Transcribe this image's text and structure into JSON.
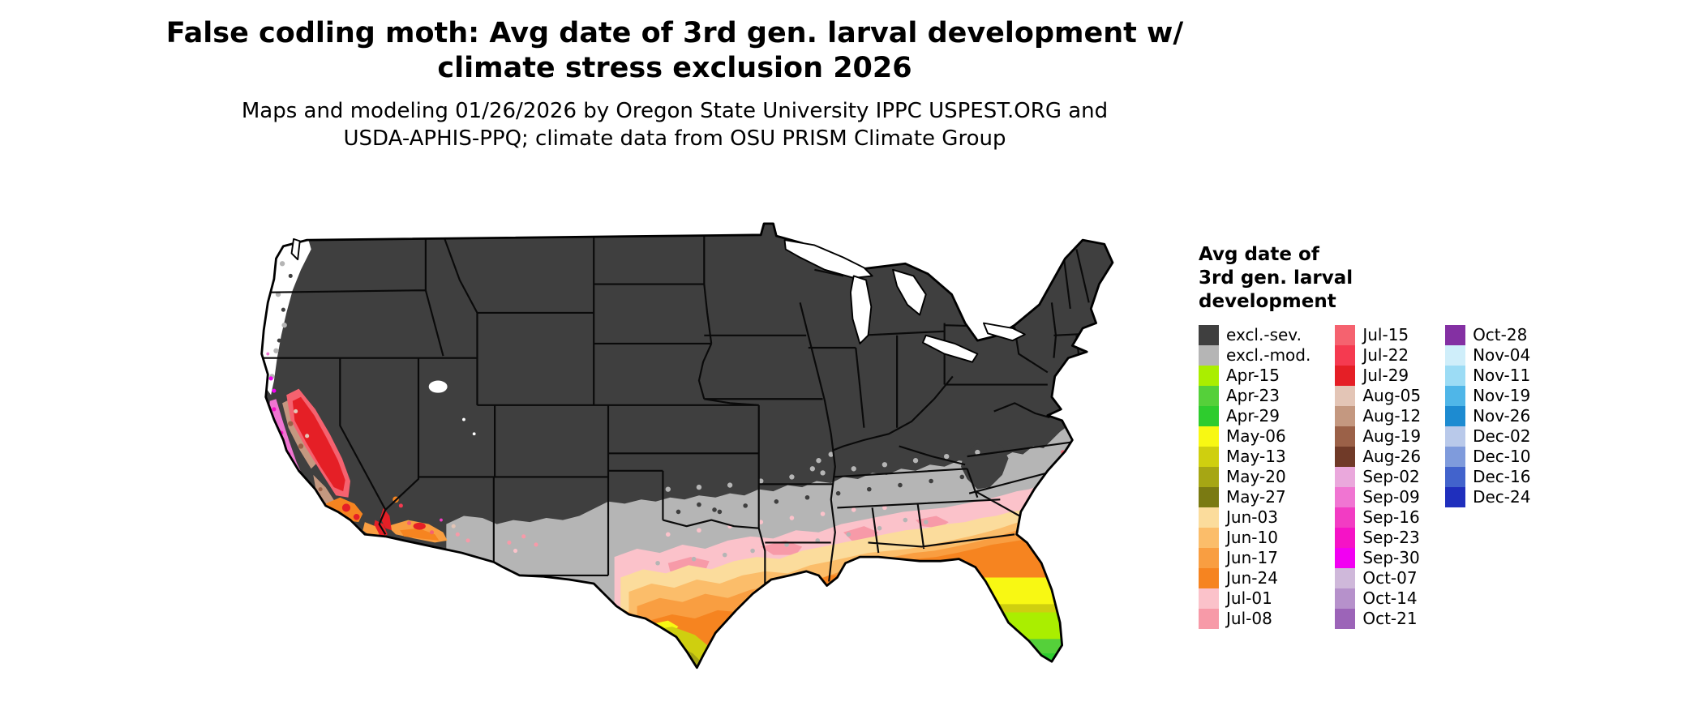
{
  "title": {
    "line1": "False codling moth: Avg date of 3rd gen. larval development w/",
    "line2": "climate stress exclusion 2026"
  },
  "subtitle": {
    "line1": "Maps and modeling 01/26/2026 by Oregon State University IPPC USPEST.ORG and",
    "line2": "USDA-APHIS-PPQ; climate data from OSU PRISM Climate Group"
  },
  "legend": {
    "title_lines": [
      "Avg date of",
      "3rd gen. larval",
      "development"
    ],
    "columns": [
      {
        "items": [
          {
            "key": "excl_sev",
            "label": "excl.-sev."
          },
          {
            "key": "excl_mod",
            "label": "excl.-mod."
          },
          {
            "key": "apr15",
            "label": "Apr-15"
          },
          {
            "key": "apr23",
            "label": "Apr-23"
          },
          {
            "key": "apr29",
            "label": "Apr-29"
          },
          {
            "key": "may06",
            "label": "May-06"
          },
          {
            "key": "may13",
            "label": "May-13"
          },
          {
            "key": "may20",
            "label": "May-20"
          },
          {
            "key": "may27",
            "label": "May-27"
          },
          {
            "key": "jun03",
            "label": "Jun-03"
          },
          {
            "key": "jun10",
            "label": "Jun-10"
          },
          {
            "key": "jun17",
            "label": "Jun-17"
          },
          {
            "key": "jun24",
            "label": "Jun-24"
          },
          {
            "key": "jul01",
            "label": "Jul-01"
          },
          {
            "key": "jul08",
            "label": "Jul-08"
          }
        ]
      },
      {
        "items": [
          {
            "key": "jul15",
            "label": "Jul-15"
          },
          {
            "key": "jul22",
            "label": "Jul-22"
          },
          {
            "key": "jul29",
            "label": "Jul-29"
          },
          {
            "key": "aug05",
            "label": "Aug-05"
          },
          {
            "key": "aug12",
            "label": "Aug-12"
          },
          {
            "key": "aug19",
            "label": "Aug-19"
          },
          {
            "key": "aug26",
            "label": "Aug-26"
          },
          {
            "key": "sep02",
            "label": "Sep-02"
          },
          {
            "key": "sep09",
            "label": "Sep-09"
          },
          {
            "key": "sep16",
            "label": "Sep-16"
          },
          {
            "key": "sep23",
            "label": "Sep-23"
          },
          {
            "key": "sep30",
            "label": "Sep-30"
          },
          {
            "key": "oct07",
            "label": "Oct-07"
          },
          {
            "key": "oct14",
            "label": "Oct-14"
          },
          {
            "key": "oct21",
            "label": "Oct-21"
          }
        ]
      },
      {
        "items": [
          {
            "key": "oct28",
            "label": "Oct-28"
          },
          {
            "key": "nov04",
            "label": "Nov-04"
          },
          {
            "key": "nov11",
            "label": "Nov-11"
          },
          {
            "key": "nov19",
            "label": "Nov-19"
          },
          {
            "key": "nov26",
            "label": "Nov-26"
          },
          {
            "key": "dec02",
            "label": "Dec-02"
          },
          {
            "key": "dec10",
            "label": "Dec-10"
          },
          {
            "key": "dec16",
            "label": "Dec-16"
          },
          {
            "key": "dec24",
            "label": "Dec-24"
          }
        ]
      }
    ]
  },
  "palette": {
    "excl_sev": "#3f3f3f",
    "excl_mod": "#b5b5b5",
    "apr15": "#aaee00",
    "apr23": "#55d03a",
    "apr29": "#2ecc2e",
    "may06": "#f8f813",
    "may13": "#cfcf0f",
    "may20": "#a6a614",
    "may27": "#7a7a12",
    "jun03": "#fbdc9c",
    "jun10": "#fbbd6a",
    "jun17": "#f99e41",
    "jun24": "#f68420",
    "jul01": "#fbc2ca",
    "jul08": "#f79aa8",
    "jul15": "#f5626f",
    "jul22": "#f53a50",
    "jul29": "#e51f26",
    "aug05": "#e3c5b6",
    "aug12": "#c49880",
    "aug19": "#9b6148",
    "aug26": "#703a28",
    "sep02": "#eaa8dc",
    "sep09": "#f075d2",
    "sep16": "#f23cc3",
    "sep23": "#f513c6",
    "sep30": "#f200f2",
    "oct07": "#cfb8da",
    "oct14": "#b691cb",
    "oct21": "#9c64b8",
    "oct28": "#8430a3",
    "nov04": "#cfeefa",
    "nov11": "#9cdcf5",
    "nov19": "#4fb6e8",
    "nov26": "#1d8bd1",
    "dec02": "#b9c9ea",
    "dec10": "#7f9bdc",
    "dec16": "#4263cc",
    "dec24": "#1f2fbd"
  }
}
